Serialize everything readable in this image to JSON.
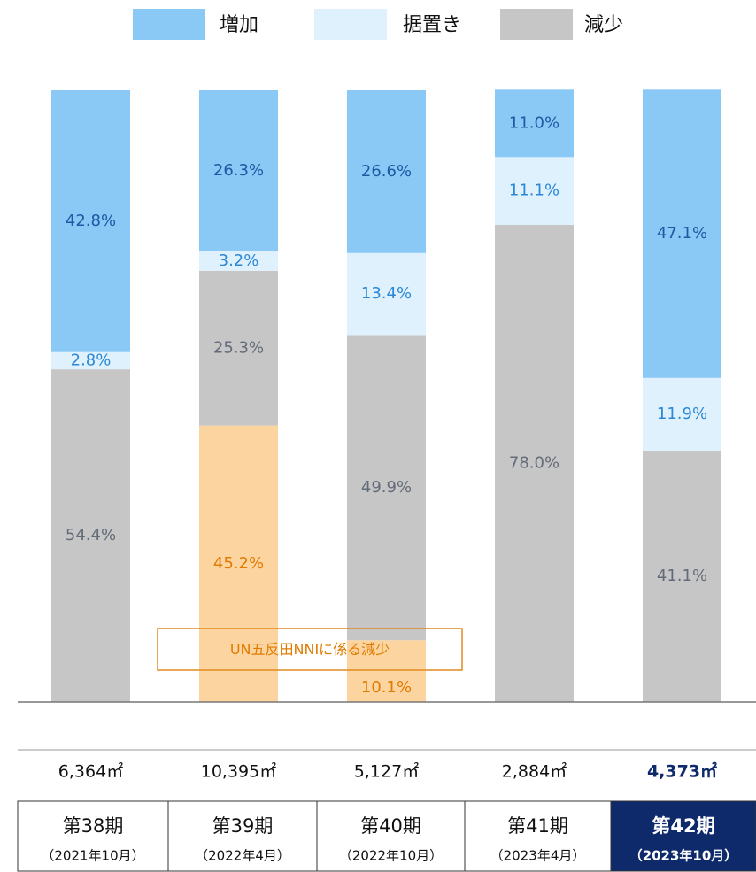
{
  "chart_data": {
    "type": "bar",
    "stacked": true,
    "categories": [
      "第38期",
      "第39期",
      "第40期",
      "第41期",
      "第42期"
    ],
    "category_dates": [
      "（2021年10月）",
      "（2022年4月）",
      "（2022年10月）",
      "（2023年4月）",
      "（2023年10月）"
    ],
    "category_areas": [
      "6,364㎡",
      "10,395㎡",
      "5,127㎡",
      "2,884㎡",
      "4,373㎡"
    ],
    "highlight_index": 4,
    "ylim": [
      0,
      100
    ],
    "series": [
      {
        "name": "UN五反田NNIに係る減少",
        "color": "#fcd4a0",
        "label_color": "#e07b00",
        "in_legend": false,
        "values": [
          null,
          45.2,
          10.1,
          null,
          null
        ],
        "value_labels": [
          null,
          "45.2%",
          "10.1%",
          null,
          null
        ]
      },
      {
        "name": "減少",
        "color": "#c6c6c6",
        "label_color": "#646b78",
        "in_legend": true,
        "values": [
          54.4,
          25.3,
          49.9,
          78.0,
          41.1
        ],
        "value_labels": [
          "54.4%",
          "25.3%",
          "49.9%",
          "78.0%",
          "41.1%"
        ]
      },
      {
        "name": "据置き",
        "color": "#dff1fc",
        "label_color": "#2a88d6",
        "in_legend": true,
        "values": [
          2.8,
          3.2,
          13.4,
          11.1,
          11.9
        ],
        "value_labels": [
          "2.8%",
          "3.2%",
          "13.4%",
          "11.1%",
          "11.9%"
        ]
      },
      {
        "name": "増加",
        "color": "#8ac8f5",
        "label_color": "#1c5aa3",
        "in_legend": true,
        "values": [
          42.8,
          26.3,
          26.6,
          11.0,
          47.1
        ],
        "value_labels": [
          "42.8%",
          "26.3%",
          "26.6%",
          "11.0%",
          "47.1%"
        ]
      }
    ]
  }
}
